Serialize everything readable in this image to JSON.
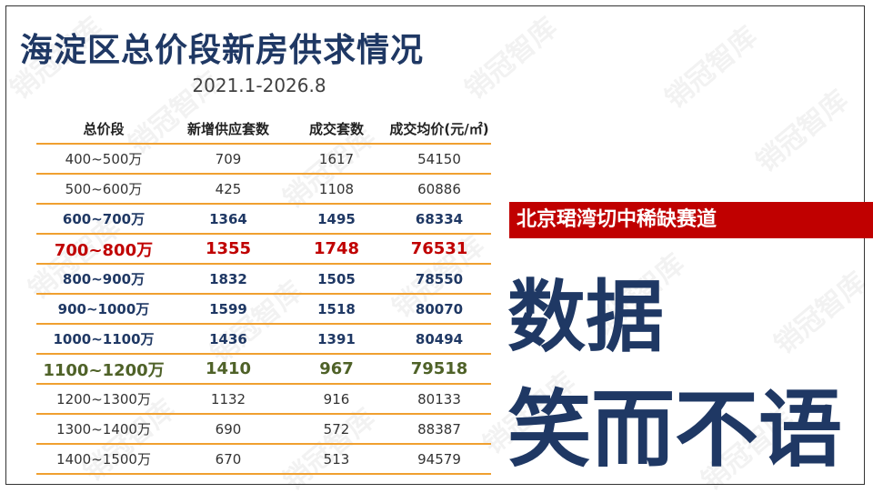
{
  "header": {
    "title": "海淀区总价段新房供求情况",
    "subtitle": "2021.1-2026.8"
  },
  "table": {
    "columns": [
      "总价段",
      "新增供应套数",
      "成交套数",
      "成交均价(元/㎡)"
    ],
    "rows": [
      [
        "400~500万",
        "709",
        "1617",
        "54150"
      ],
      [
        "500~600万",
        "425",
        "1108",
        "60886"
      ],
      [
        "600~700万",
        "1364",
        "1495",
        "68334"
      ],
      [
        "700~800万",
        "1355",
        "1748",
        "76531"
      ],
      [
        "800~900万",
        "1832",
        "1505",
        "78550"
      ],
      [
        "900~1000万",
        "1599",
        "1518",
        "80070"
      ],
      [
        "1000~1100万",
        "1436",
        "1391",
        "80494"
      ],
      [
        "1100~1200万",
        "1410",
        "967",
        "79518"
      ],
      [
        "1200~1300万",
        "1132",
        "916",
        "80133"
      ],
      [
        "1300~1400万",
        "690",
        "572",
        "88387"
      ],
      [
        "1400~1500万",
        "670",
        "513",
        "94579"
      ]
    ]
  },
  "banner": "北京珺湾切中稀缺赛道",
  "headline": [
    "数据",
    "笑而不语"
  ],
  "watermark": "销冠智库"
}
